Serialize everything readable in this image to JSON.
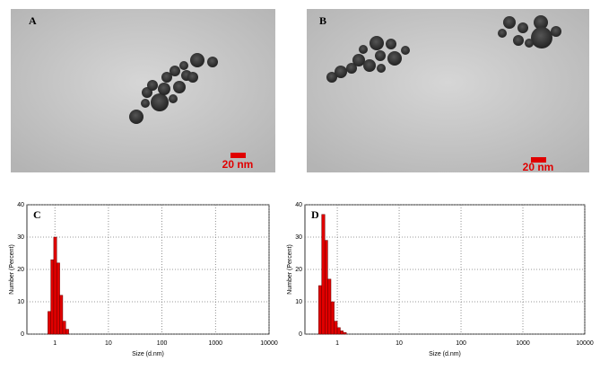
{
  "images": [
    {
      "label": "A",
      "scale_bar": "20 nm"
    },
    {
      "label": "B",
      "scale_bar": "20 nm"
    }
  ],
  "chart_data": [
    {
      "type": "histogram",
      "annotation": "C",
      "xlabel": "Size (d.nm)",
      "ylabel": "Number (Percent)",
      "bins": [
        0.74,
        0.84,
        0.95,
        1.08,
        1.23,
        1.4,
        1.59,
        1.81
      ],
      "values": [
        7,
        23,
        30,
        22,
        12,
        4,
        1.5
      ],
      "color": "#e00000",
      "xscale": "log",
      "xlim": [
        0.3,
        10000
      ],
      "xticks": [
        1,
        10,
        100,
        1000,
        10000
      ],
      "ylim": [
        0,
        40
      ],
      "yticks": [
        0,
        10,
        20,
        30,
        40
      ],
      "grid": true
    },
    {
      "type": "histogram",
      "annotation": "D",
      "xlabel": "Size (d.nm)",
      "ylabel": "Number (Percent)",
      "bins": [
        0.5,
        0.56,
        0.63,
        0.7,
        0.79,
        0.89,
        1.0,
        1.12,
        1.25,
        1.4
      ],
      "values": [
        15,
        37,
        29,
        17,
        10,
        4,
        2,
        1,
        0.5
      ],
      "color": "#e00000",
      "xscale": "log",
      "xlim": [
        0.3,
        10000
      ],
      "xticks": [
        1,
        10,
        100,
        1000,
        10000
      ],
      "ylim": [
        0,
        40
      ],
      "yticks": [
        0,
        10,
        20,
        30,
        40
      ],
      "grid": true
    }
  ]
}
